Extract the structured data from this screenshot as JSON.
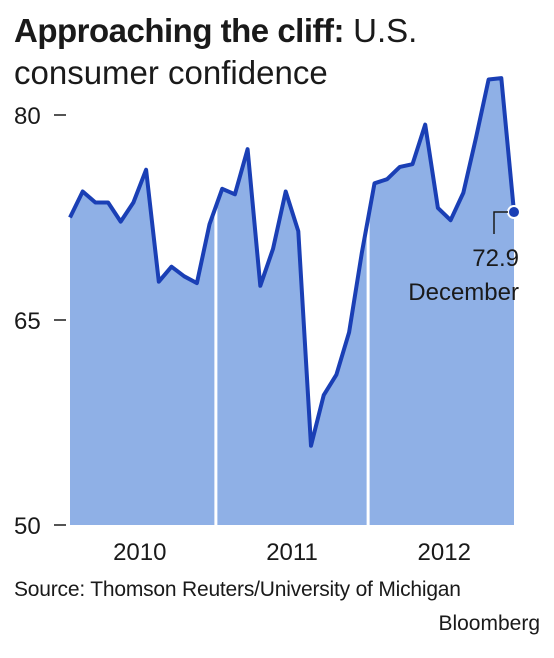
{
  "title_bold": "Approaching the cliff:",
  "title_rest_line1": "U.S.",
  "title_line2": "consumer confidence",
  "source": "Source: Thomson Reuters/University of Michigan",
  "credit": "Bloomberg",
  "colors": {
    "line": "#1a3fb5",
    "fill": "#8fb0e6",
    "dot": "#1a3fb5"
  },
  "chart_data": {
    "type": "area",
    "ylim": [
      50,
      85
    ],
    "yticks": [
      50,
      65,
      80
    ],
    "ytick_labels": [
      "50",
      "65",
      "80"
    ],
    "year_labels": [
      "2010",
      "2011",
      "2012"
    ],
    "x": [
      "2010-01",
      "2010-02",
      "2010-03",
      "2010-04",
      "2010-05",
      "2010-06",
      "2010-07",
      "2010-08",
      "2010-09",
      "2010-10",
      "2010-11",
      "2010-12",
      "2011-01",
      "2011-02",
      "2011-03",
      "2011-04",
      "2011-05",
      "2011-06",
      "2011-07",
      "2011-08",
      "2011-09",
      "2011-10",
      "2011-11",
      "2011-12",
      "2012-01",
      "2012-02",
      "2012-03",
      "2012-04",
      "2012-05",
      "2012-06",
      "2012-07",
      "2012-08",
      "2012-09",
      "2012-10",
      "2012-11",
      "2012-12"
    ],
    "values": [
      72.5,
      74.4,
      73.6,
      73.6,
      72.2,
      73.6,
      76.0,
      67.8,
      68.9,
      68.2,
      67.7,
      72.0,
      74.6,
      74.2,
      77.5,
      67.5,
      70.2,
      74.4,
      71.5,
      55.8,
      59.5,
      61.0,
      64.1,
      69.9,
      75.0,
      75.3,
      76.2,
      76.4,
      79.3,
      73.2,
      72.3,
      74.3,
      78.3,
      82.6,
      82.7,
      72.9
    ],
    "annotation": {
      "value": "72.9",
      "label": "December"
    }
  }
}
